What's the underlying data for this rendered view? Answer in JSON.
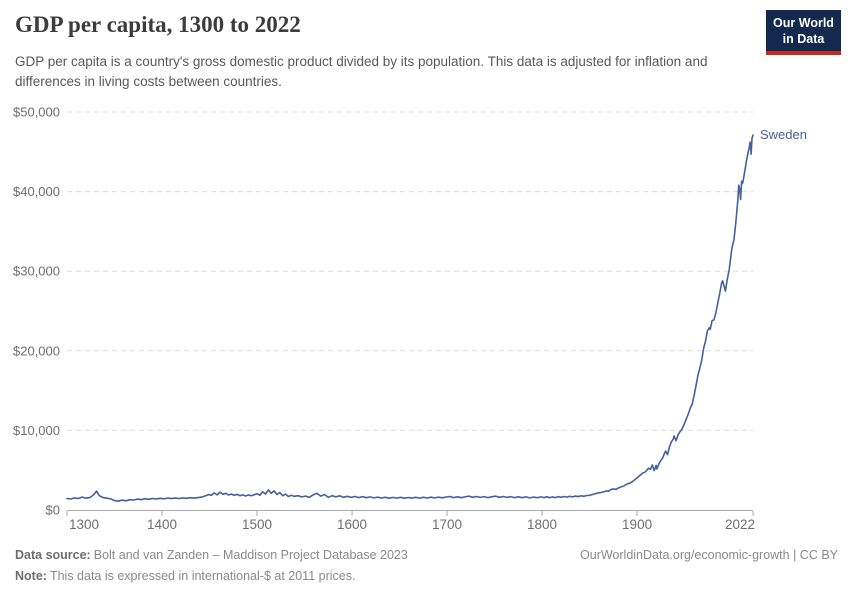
{
  "header": {
    "title": "GDP per capita, 1300 to 2022",
    "subtitle": "GDP per capita is a country's gross domestic product divided by its population. This data is adjusted for inflation and differences in living costs between countries.",
    "logo": {
      "line1": "Our World",
      "line2": "in Data"
    }
  },
  "colors": {
    "line": "#45619D",
    "grid": "#DCDCDC",
    "axis": "#A8A8A8",
    "tick_text": "#6E6E6E",
    "title": "#3C3C3C",
    "subtitle": "#595959",
    "footer_text": "#8A8A8A",
    "logo_bg": "#13294D",
    "logo_stripe": "#C5281C"
  },
  "chart_data": {
    "type": "line",
    "title": "GDP per capita, 1300 to 2022",
    "xlabel": "",
    "ylabel": "",
    "xlim": [
      1300,
      2022
    ],
    "ylim": [
      0,
      50000
    ],
    "x_ticks": [
      1300,
      1400,
      1500,
      1600,
      1700,
      1800,
      1900,
      2022
    ],
    "x_tick_labels": [
      "1300",
      "1400",
      "1500",
      "1600",
      "1700",
      "1800",
      "1900",
      "2022"
    ],
    "y_ticks": [
      0,
      10000,
      20000,
      30000,
      40000,
      50000
    ],
    "y_tick_labels": [
      "$0",
      "$10,000",
      "$20,000",
      "$30,000",
      "$40,000",
      "$50,000"
    ],
    "grid": "horizontal dashed",
    "legend_position": "end-of-line label",
    "series": [
      {
        "name": "Sweden",
        "color": "#45619D",
        "points": [
          [
            1300,
            1450
          ],
          [
            1304,
            1380
          ],
          [
            1308,
            1520
          ],
          [
            1312,
            1440
          ],
          [
            1316,
            1620
          ],
          [
            1320,
            1500
          ],
          [
            1324,
            1560
          ],
          [
            1328,
            1900
          ],
          [
            1331,
            2380
          ],
          [
            1334,
            1800
          ],
          [
            1338,
            1560
          ],
          [
            1342,
            1480
          ],
          [
            1346,
            1400
          ],
          [
            1350,
            1180
          ],
          [
            1354,
            1100
          ],
          [
            1358,
            1250
          ],
          [
            1362,
            1160
          ],
          [
            1366,
            1300
          ],
          [
            1370,
            1240
          ],
          [
            1374,
            1370
          ],
          [
            1378,
            1300
          ],
          [
            1382,
            1420
          ],
          [
            1386,
            1350
          ],
          [
            1390,
            1450
          ],
          [
            1394,
            1390
          ],
          [
            1398,
            1470
          ],
          [
            1402,
            1410
          ],
          [
            1406,
            1490
          ],
          [
            1410,
            1430
          ],
          [
            1414,
            1500
          ],
          [
            1418,
            1450
          ],
          [
            1422,
            1520
          ],
          [
            1426,
            1470
          ],
          [
            1430,
            1540
          ],
          [
            1434,
            1490
          ],
          [
            1438,
            1560
          ],
          [
            1442,
            1620
          ],
          [
            1446,
            1780
          ],
          [
            1449,
            1950
          ],
          [
            1452,
            1850
          ],
          [
            1455,
            2150
          ],
          [
            1458,
            1900
          ],
          [
            1461,
            2250
          ],
          [
            1464,
            1980
          ],
          [
            1467,
            2100
          ],
          [
            1470,
            1880
          ],
          [
            1473,
            2000
          ],
          [
            1476,
            1850
          ],
          [
            1479,
            1960
          ],
          [
            1482,
            1800
          ],
          [
            1485,
            1900
          ],
          [
            1488,
            1760
          ],
          [
            1491,
            1880
          ],
          [
            1494,
            1800
          ],
          [
            1497,
            1920
          ],
          [
            1500,
            2050
          ],
          [
            1503,
            1850
          ],
          [
            1506,
            2300
          ],
          [
            1509,
            2000
          ],
          [
            1512,
            2520
          ],
          [
            1515,
            2100
          ],
          [
            1518,
            2400
          ],
          [
            1521,
            1950
          ],
          [
            1524,
            2200
          ],
          [
            1527,
            1800
          ],
          [
            1530,
            2000
          ],
          [
            1533,
            1700
          ],
          [
            1536,
            1850
          ],
          [
            1539,
            1720
          ],
          [
            1543,
            1800
          ],
          [
            1547,
            1650
          ],
          [
            1551,
            1750
          ],
          [
            1555,
            1600
          ],
          [
            1559,
            1900
          ],
          [
            1563,
            2100
          ],
          [
            1567,
            1750
          ],
          [
            1571,
            1950
          ],
          [
            1575,
            1600
          ],
          [
            1579,
            1800
          ],
          [
            1583,
            1650
          ],
          [
            1587,
            1780
          ],
          [
            1591,
            1600
          ],
          [
            1595,
            1720
          ],
          [
            1599,
            1580
          ],
          [
            1603,
            1700
          ],
          [
            1607,
            1560
          ],
          [
            1611,
            1680
          ],
          [
            1615,
            1550
          ],
          [
            1619,
            1650
          ],
          [
            1623,
            1520
          ],
          [
            1627,
            1620
          ],
          [
            1631,
            1500
          ],
          [
            1635,
            1600
          ],
          [
            1639,
            1480
          ],
          [
            1643,
            1580
          ],
          [
            1647,
            1500
          ],
          [
            1651,
            1600
          ],
          [
            1655,
            1480
          ],
          [
            1659,
            1570
          ],
          [
            1663,
            1490
          ],
          [
            1667,
            1590
          ],
          [
            1671,
            1500
          ],
          [
            1675,
            1600
          ],
          [
            1679,
            1510
          ],
          [
            1683,
            1610
          ],
          [
            1687,
            1520
          ],
          [
            1691,
            1620
          ],
          [
            1695,
            1530
          ],
          [
            1699,
            1630
          ],
          [
            1703,
            1700
          ],
          [
            1707,
            1560
          ],
          [
            1711,
            1660
          ],
          [
            1715,
            1540
          ],
          [
            1719,
            1640
          ],
          [
            1723,
            1740
          ],
          [
            1727,
            1600
          ],
          [
            1731,
            1700
          ],
          [
            1735,
            1580
          ],
          [
            1739,
            1680
          ],
          [
            1743,
            1560
          ],
          [
            1747,
            1660
          ],
          [
            1751,
            1740
          ],
          [
            1755,
            1600
          ],
          [
            1759,
            1700
          ],
          [
            1763,
            1580
          ],
          [
            1767,
            1680
          ],
          [
            1771,
            1560
          ],
          [
            1775,
            1660
          ],
          [
            1779,
            1540
          ],
          [
            1783,
            1640
          ],
          [
            1787,
            1520
          ],
          [
            1791,
            1620
          ],
          [
            1795,
            1540
          ],
          [
            1799,
            1640
          ],
          [
            1802,
            1560
          ],
          [
            1805,
            1660
          ],
          [
            1808,
            1540
          ],
          [
            1811,
            1640
          ],
          [
            1814,
            1560
          ],
          [
            1817,
            1680
          ],
          [
            1820,
            1600
          ],
          [
            1823,
            1700
          ],
          [
            1826,
            1620
          ],
          [
            1829,
            1720
          ],
          [
            1832,
            1650
          ],
          [
            1835,
            1750
          ],
          [
            1838,
            1680
          ],
          [
            1841,
            1780
          ],
          [
            1844,
            1720
          ],
          [
            1847,
            1820
          ],
          [
            1850,
            1850
          ],
          [
            1853,
            1950
          ],
          [
            1856,
            2050
          ],
          [
            1859,
            2150
          ],
          [
            1862,
            2200
          ],
          [
            1865,
            2280
          ],
          [
            1868,
            2400
          ],
          [
            1870,
            2350
          ],
          [
            1872,
            2550
          ],
          [
            1875,
            2650
          ],
          [
            1878,
            2600
          ],
          [
            1880,
            2750
          ],
          [
            1883,
            2900
          ],
          [
            1886,
            3000
          ],
          [
            1889,
            3250
          ],
          [
            1892,
            3350
          ],
          [
            1895,
            3550
          ],
          [
            1898,
            3850
          ],
          [
            1900,
            4050
          ],
          [
            1903,
            4350
          ],
          [
            1906,
            4650
          ],
          [
            1909,
            4800
          ],
          [
            1912,
            5250
          ],
          [
            1914,
            5100
          ],
          [
            1916,
            5650
          ],
          [
            1918,
            4950
          ],
          [
            1920,
            5600
          ],
          [
            1921,
            5150
          ],
          [
            1923,
            5800
          ],
          [
            1925,
            6200
          ],
          [
            1927,
            6550
          ],
          [
            1929,
            7150
          ],
          [
            1930,
            7400
          ],
          [
            1932,
            6950
          ],
          [
            1934,
            7900
          ],
          [
            1936,
            8550
          ],
          [
            1938,
            8900
          ],
          [
            1939,
            9300
          ],
          [
            1941,
            8700
          ],
          [
            1943,
            9400
          ],
          [
            1945,
            9800
          ],
          [
            1947,
            10100
          ],
          [
            1949,
            10600
          ],
          [
            1950,
            10900
          ],
          [
            1952,
            11500
          ],
          [
            1954,
            12100
          ],
          [
            1956,
            12800
          ],
          [
            1958,
            13300
          ],
          [
            1960,
            14400
          ],
          [
            1962,
            15600
          ],
          [
            1964,
            16900
          ],
          [
            1966,
            17800
          ],
          [
            1968,
            18800
          ],
          [
            1970,
            20300
          ],
          [
            1972,
            21200
          ],
          [
            1974,
            22500
          ],
          [
            1976,
            22900
          ],
          [
            1977,
            22700
          ],
          [
            1979,
            23800
          ],
          [
            1981,
            23900
          ],
          [
            1983,
            24800
          ],
          [
            1985,
            26000
          ],
          [
            1987,
            27200
          ],
          [
            1989,
            28500
          ],
          [
            1990,
            28800
          ],
          [
            1991,
            28400
          ],
          [
            1993,
            27500
          ],
          [
            1995,
            29000
          ],
          [
            1997,
            30200
          ],
          [
            1999,
            32100
          ],
          [
            2000,
            33000
          ],
          [
            2002,
            34000
          ],
          [
            2004,
            36200
          ],
          [
            2006,
            38900
          ],
          [
            2007,
            40800
          ],
          [
            2008,
            40300
          ],
          [
            2009,
            39000
          ],
          [
            2010,
            41300
          ],
          [
            2011,
            41000
          ],
          [
            2012,
            41600
          ],
          [
            2013,
            42300
          ],
          [
            2014,
            43000
          ],
          [
            2015,
            43800
          ],
          [
            2016,
            44400
          ],
          [
            2017,
            45000
          ],
          [
            2018,
            45500
          ],
          [
            2019,
            46200
          ],
          [
            2020,
            44700
          ],
          [
            2021,
            46700
          ],
          [
            2022,
            47100
          ]
        ]
      }
    ]
  },
  "footer": {
    "source_label": "Data source:",
    "source_text": "Bolt and van Zanden – Maddison Project Database 2023",
    "note_label": "Note:",
    "note_text": "This data is expressed in international-$ at 2011 prices.",
    "link_text": "OurWorldinData.org/economic-growth",
    "separator": " | ",
    "license_text": "CC BY"
  }
}
